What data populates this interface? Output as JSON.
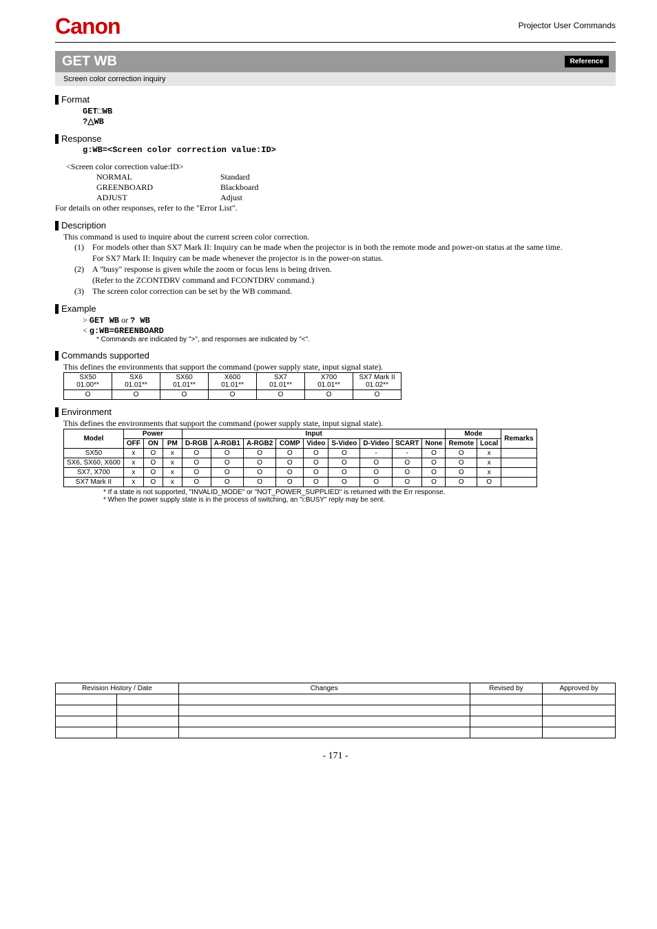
{
  "header": {
    "logo": "Canon",
    "right": "Projector User Commands"
  },
  "title": "GET WB",
  "ref_badge": "Reference",
  "subtitle": "Screen color correction inquiry",
  "format": {
    "heading": "Format",
    "line1_pre": "GET",
    "line1_post": "WB",
    "line2_pre": "?",
    "line2_post": "WB"
  },
  "response": {
    "heading": "Response",
    "line": "g:WB=<Screen color correction value:ID>",
    "caption": "<Screen color correction value:ID>",
    "values": [
      {
        "k": "NORMAL",
        "v": "Standard"
      },
      {
        "k": "GREENBOARD",
        "v": "Blackboard"
      },
      {
        "k": "ADJUST",
        "v": "Adjust"
      }
    ],
    "footer": "For details on other responses, refer to the \"Error List\"."
  },
  "description": {
    "heading": "Description",
    "intro": "This command is used to inquire about the current screen color correction.",
    "items": [
      {
        "n": "(1)",
        "t": "For models other than SX7 Mark II: Inquiry can be made when the projector is in both the remote mode and power-on status at the same time.",
        "t2": "For SX7 Mark II: Inquiry can be made whenever the projector is in the power-on status."
      },
      {
        "n": "(2)",
        "t": "A \"busy\" response is given while the zoom or focus lens is being driven.",
        "t2": "(Refer to the ZCONTDRV command and FCONTDRV command.)"
      },
      {
        "n": "(3)",
        "t": "The screen color correction can be set by the WB command."
      }
    ]
  },
  "example": {
    "heading": "Example",
    "l1_pre": "> ",
    "l1a": "GET WB",
    "l1_mid": " or ",
    "l1b": "? WB",
    "l2_pre": "< ",
    "l2": "g:WB=GREENBOARD",
    "note": "* Commands are indicated by \">\", and responses are indicated by \"<\"."
  },
  "commands_supported": {
    "heading": "Commands supported",
    "intro": "This defines the environments that support the command (power supply state, input signal state).",
    "headers": [
      {
        "a": "SX50",
        "b": "01.00**"
      },
      {
        "a": "SX6",
        "b": "01.01**"
      },
      {
        "a": "SX60",
        "b": "01.01**"
      },
      {
        "a": "X600",
        "b": "01.01**"
      },
      {
        "a": "SX7",
        "b": "01.01**"
      },
      {
        "a": "X700",
        "b": "01.01**"
      },
      {
        "a": "SX7 Mark II",
        "b": "01.02**"
      }
    ],
    "row": [
      "O",
      "O",
      "O",
      "O",
      "O",
      "O",
      "O"
    ]
  },
  "environment": {
    "heading": "Environment",
    "intro": "This defines the environments that support the command (power supply state, input signal state).",
    "group_headers": {
      "model": "Model",
      "power": "Power",
      "input": "Input",
      "mode": "Mode",
      "remarks": "Remarks"
    },
    "sub_headers": [
      "OFF",
      "ON",
      "PM",
      "D-RGB",
      "A-RGB1",
      "A-RGB2",
      "COMP",
      "Video",
      "S-Video",
      "D-Video",
      "SCART",
      "None",
      "Remote",
      "Local"
    ],
    "rows": [
      {
        "model": "SX50",
        "cells": [
          "x",
          "O",
          "x",
          "O",
          "O",
          "O",
          "O",
          "O",
          "O",
          "-",
          "-",
          "O",
          "O",
          "x",
          ""
        ]
      },
      {
        "model": "SX6, SX60, X600",
        "cells": [
          "x",
          "O",
          "x",
          "O",
          "O",
          "O",
          "O",
          "O",
          "O",
          "O",
          "O",
          "O",
          "O",
          "x",
          ""
        ]
      },
      {
        "model": "SX7, X700",
        "cells": [
          "x",
          "O",
          "x",
          "O",
          "O",
          "O",
          "O",
          "O",
          "O",
          "O",
          "O",
          "O",
          "O",
          "x",
          ""
        ]
      },
      {
        "model": "SX7 Mark II",
        "cells": [
          "x",
          "O",
          "x",
          "O",
          "O",
          "O",
          "O",
          "O",
          "O",
          "O",
          "O",
          "O",
          "O",
          "O",
          ""
        ]
      }
    ],
    "footnotes": [
      "*  If a state is not supported, \"INVALID_MODE\" or \"NOT_POWER_SUPPLIED\" is returned with the Err response.",
      "*  When the power supply state is in the process of switching, an \"i:BUSY\" reply may be sent."
    ]
  },
  "revision": {
    "headers": [
      "Revision History / Date",
      "Changes",
      "Revised by",
      "Approved by"
    ],
    "blank_rows": 4
  },
  "page_num": "- 171 -"
}
